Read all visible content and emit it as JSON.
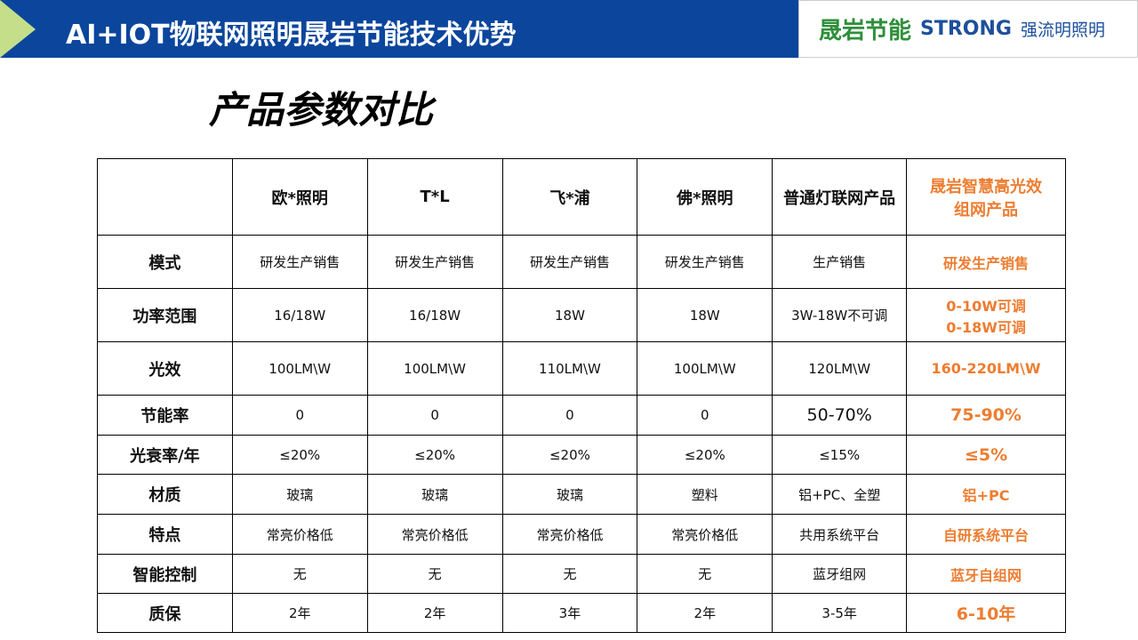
{
  "header": {
    "title": "AI+IOT物联网照明晟岩节能技术优势",
    "logo_cn": "晟岩节能",
    "logo_en": "STRONG",
    "logo_en_suffix": "强流明照明"
  },
  "subtitle": "产品参数对比",
  "accent_color": "#ed7d31",
  "table": {
    "columns": [
      "",
      "欧*照明",
      "T*L",
      "飞*浦",
      "佛*照明",
      "普通灯联网产品",
      "晟岩智慧高光效组网产品"
    ],
    "rows": [
      {
        "label": "模式",
        "values": [
          "研发生产销售",
          "研发生产销售",
          "研发生产销售",
          "研发生产销售",
          "生产销售",
          "研发生产销售"
        ]
      },
      {
        "label": "功率范围",
        "values": [
          "16/18W",
          "16/18W",
          "18W",
          "18W",
          "3W-18W不可调",
          "0-10W可调\n0-18W可调"
        ]
      },
      {
        "label": "光效",
        "values": [
          "100LM\\W",
          "100LM\\W",
          "110LM\\W",
          "100LM\\W",
          "120LM\\W",
          "160-220LM\\W"
        ]
      },
      {
        "label": "节能率",
        "values": [
          "0",
          "0",
          "0",
          "0",
          "50-70%",
          "75-90%"
        ]
      },
      {
        "label": "光衰率/年",
        "values": [
          "≤20%",
          "≤20%",
          "≤20%",
          "≤20%",
          "≤15%",
          "≤5%"
        ]
      },
      {
        "label": "材质",
        "values": [
          "玻璃",
          "玻璃",
          "玻璃",
          "塑料",
          "铝+PC、全塑",
          "铝+PC"
        ]
      },
      {
        "label": "特点",
        "values": [
          "常亮价格低",
          "常亮价格低",
          "常亮价格低",
          "常亮价格低",
          "共用系统平台",
          "自研系统平台"
        ]
      },
      {
        "label": "智能控制",
        "values": [
          "无",
          "无",
          "无",
          "无",
          "蓝牙组网",
          "蓝牙自组网"
        ]
      },
      {
        "label": "质保",
        "values": [
          "2年",
          "2年",
          "3年",
          "2年",
          "3-5年",
          "6-10年"
        ]
      }
    ]
  }
}
